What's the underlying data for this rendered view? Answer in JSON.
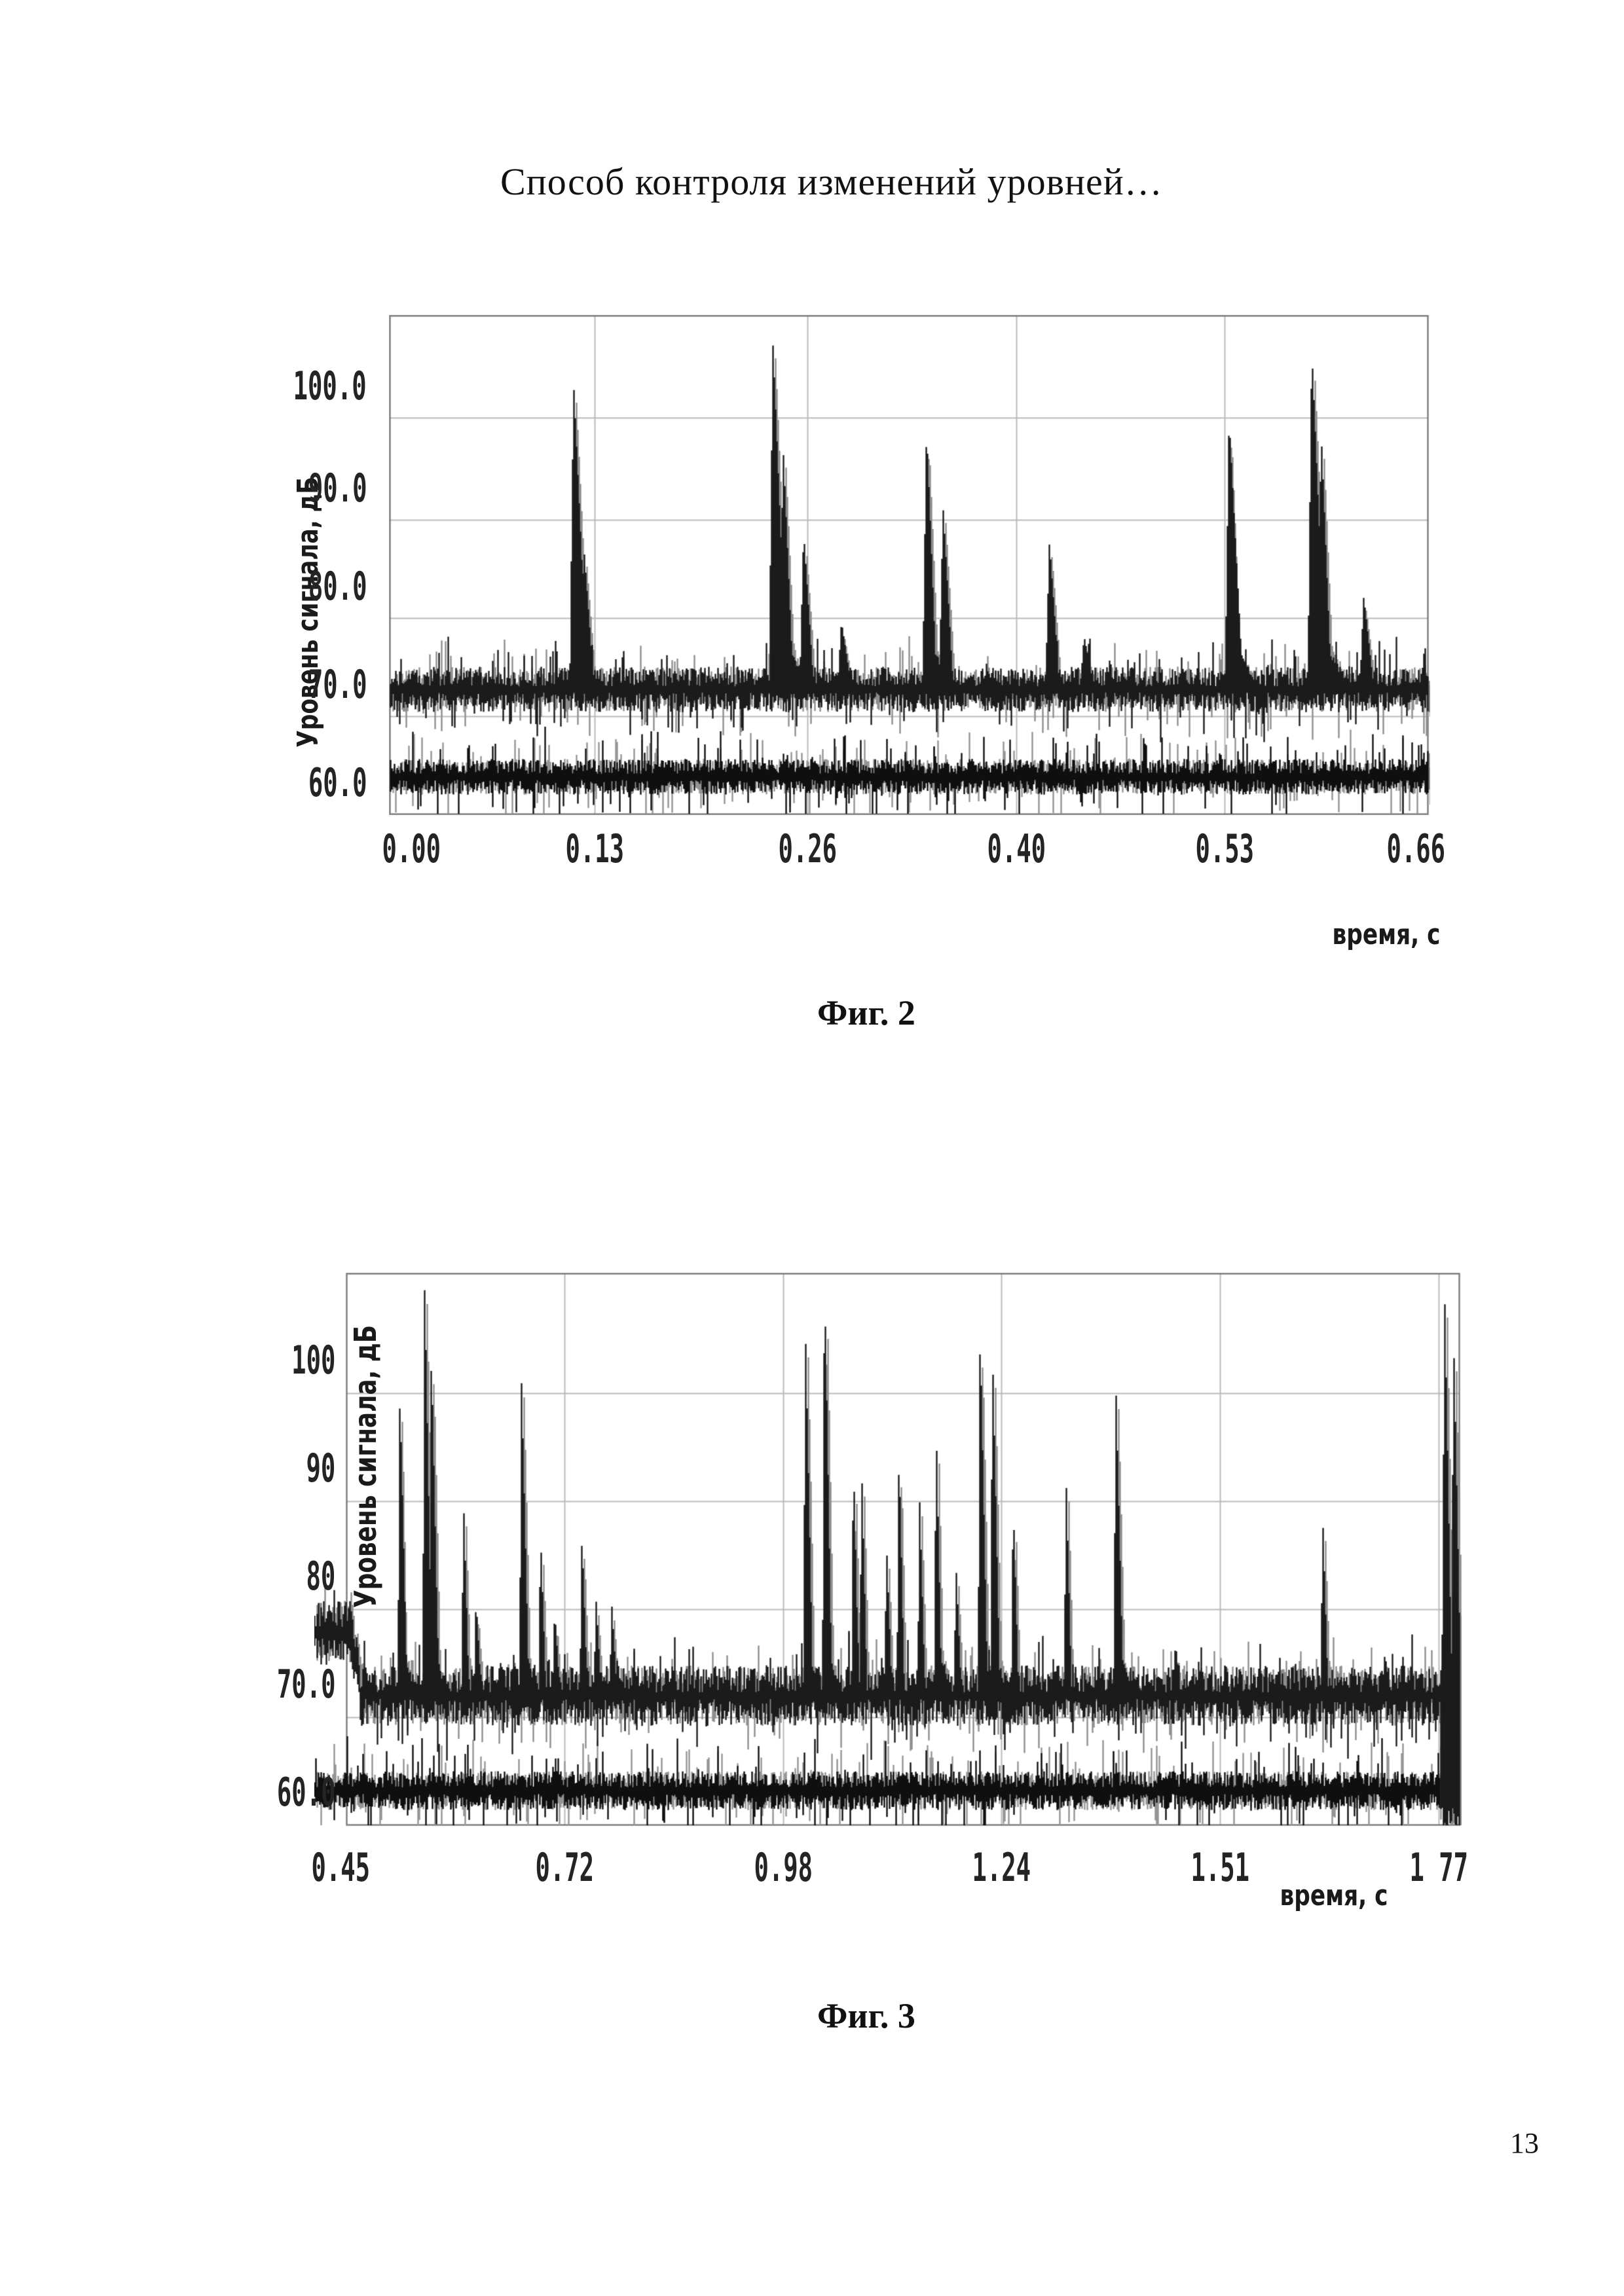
{
  "page": {
    "title": "Способ контроля изменений уровней…",
    "number": "13"
  },
  "figures": [
    {
      "caption": "Фиг. 2",
      "y_axis_label": "Уровень сигнала, дБ",
      "x_axis_label": "время, с",
      "y_ticks": [
        "100.0",
        "90.0",
        "80.0",
        "70.0",
        "60.0"
      ],
      "x_ticks": [
        "0.00",
        "0.13",
        "0.26",
        "0.40",
        "0.53",
        "0.66"
      ],
      "chart_data": {
        "type": "line",
        "title": "",
        "xlabel": "время, с",
        "ylabel": "Уровень сигнала, дБ",
        "x_ticks_s": [
          0.0,
          0.13,
          0.26,
          0.4,
          0.53,
          0.66
        ],
        "y_grid_db": [
          100,
          90,
          80,
          70,
          60
        ],
        "ylim": [
          57,
          110.5
        ],
        "grid": true,
        "series": [
          {
            "name": "instantaneous-signal-level",
            "baseline_db": 72.6,
            "noise_db": 2.0,
            "peaks": [
              [
                0.117,
                103.5
              ],
              [
                0.1235,
                87
              ],
              [
                0.2435,
                107.5
              ],
              [
                0.25,
                97
              ],
              [
                0.263,
                88.5
              ],
              [
                0.287,
                79.5
              ],
              [
                0.341,
                99
              ],
              [
                0.3515,
                91
              ],
              [
                0.419,
                87.5
              ],
              [
                0.441,
                78
              ],
              [
                0.533,
                100
              ],
              [
                0.5855,
                107
              ],
              [
                0.5915,
                98.5
              ],
              [
                0.6185,
                82
              ]
            ]
          },
          {
            "name": "background-signal-level",
            "baseline_db": 63.8,
            "noise_db": 1.5,
            "peaks": []
          }
        ]
      }
    },
    {
      "caption": "Фиг. 3",
      "y_axis_label": "Уровень сигнала, дБ",
      "x_axis_label": "время, с",
      "y_ticks": [
        "100",
        "90",
        "80",
        "70.0",
        "60.0"
      ],
      "x_ticks": [
        "0.45",
        "0.72",
        "0.98",
        "1.24",
        "1.51",
        "1 77"
      ],
      "chart_data": {
        "type": "line",
        "title": "",
        "xlabel": "время, с",
        "ylabel": "Уровень сигнала, дБ",
        "x_ticks_s": [
          0.45,
          0.72,
          0.98,
          1.24,
          1.51,
          1.77
        ],
        "y_grid_db": [
          100,
          90,
          80,
          70,
          60
        ],
        "ylim": [
          57,
          111
        ],
        "grid": true,
        "series": [
          {
            "name": "instantaneous-signal-level",
            "baseline_db": 72.0,
            "noise_db": 2.5,
            "start_elevated": {
              "until_s": 0.468,
              "level_db": 78
            },
            "chaos_start_s": 1.772,
            "peaks": [
              [
                0.515,
                100
              ],
              [
                0.545,
                110.5
              ],
              [
                0.553,
                104
              ],
              [
                0.592,
                90
              ],
              [
                0.607,
                81
              ],
              [
                0.662,
                101
              ],
              [
                0.685,
                87
              ],
              [
                0.702,
                80
              ],
              [
                0.735,
                87
              ],
              [
                0.752,
                81
              ],
              [
                0.771,
                80.5
              ],
              [
                1.005,
                106
              ],
              [
                1.028,
                111
              ],
              [
                1.063,
                94
              ],
              [
                1.073,
                93
              ],
              [
                1.103,
                86
              ],
              [
                1.118,
                95
              ],
              [
                1.143,
                90
              ],
              [
                1.163,
                97
              ],
              [
                1.187,
                84
              ],
              [
                1.216,
                106
              ],
              [
                1.231,
                104
              ],
              [
                1.256,
                90
              ],
              [
                1.32,
                92
              ],
              [
                1.38,
                101
              ],
              [
                1.452,
                77
              ],
              [
                1.63,
                88.5
              ],
              [
                1.705,
                76
              ],
              [
                1.777,
                110.5
              ],
              [
                1.788,
                105.5
              ],
              [
                1.799,
                98
              ]
            ]
          },
          {
            "name": "background-signal-level",
            "baseline_db": 63.2,
            "noise_db": 1.5,
            "t_end_s": 1.772,
            "peaks": []
          }
        ]
      }
    }
  ]
}
